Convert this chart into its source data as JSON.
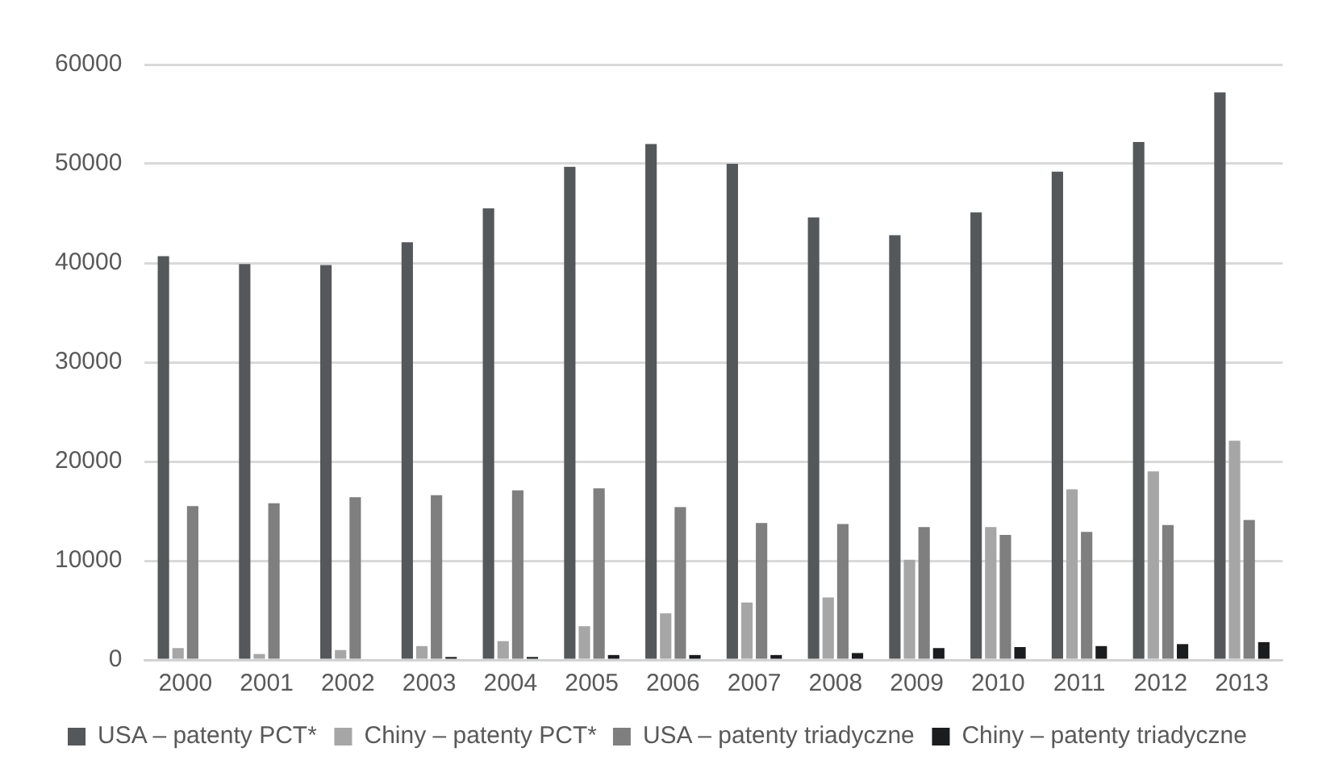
{
  "chart_data": {
    "type": "bar",
    "categories": [
      "2000",
      "2001",
      "2002",
      "2003",
      "2004",
      "2005",
      "2006",
      "2007",
      "2008",
      "2009",
      "2010",
      "2011",
      "2012",
      "2013"
    ],
    "series": [
      {
        "name": "USA – patenty PCT*",
        "color": "#55585a",
        "values": [
          40700,
          39900,
          39800,
          42100,
          45500,
          49700,
          52000,
          50000,
          44600,
          42800,
          45100,
          49200,
          52200,
          57200
        ]
      },
      {
        "name": "Chiny – patenty PCT*",
        "color": "#a6a6a6",
        "values": [
          1200,
          600,
          1000,
          1400,
          1900,
          3400,
          4700,
          5800,
          6300,
          10100,
          13400,
          17200,
          19000,
          22100
        ]
      },
      {
        "name": "USA – patenty triadyczne",
        "color": "#7f7f7f",
        "values": [
          15500,
          15800,
          16400,
          16600,
          17100,
          17300,
          15400,
          13800,
          13700,
          13400,
          12600,
          12900,
          13600,
          14100
        ]
      },
      {
        "name": "Chiny – patenty triadyczne",
        "color": "#1a1c1e",
        "values": [
          null,
          null,
          null,
          300,
          300,
          500,
          500,
          500,
          700,
          1200,
          1300,
          1400,
          1600,
          1800
        ]
      }
    ],
    "ylim": [
      0,
      60000
    ],
    "yticks": [
      0,
      10000,
      20000,
      30000,
      40000,
      50000,
      60000
    ],
    "grid": "y",
    "legend": "bottom"
  }
}
